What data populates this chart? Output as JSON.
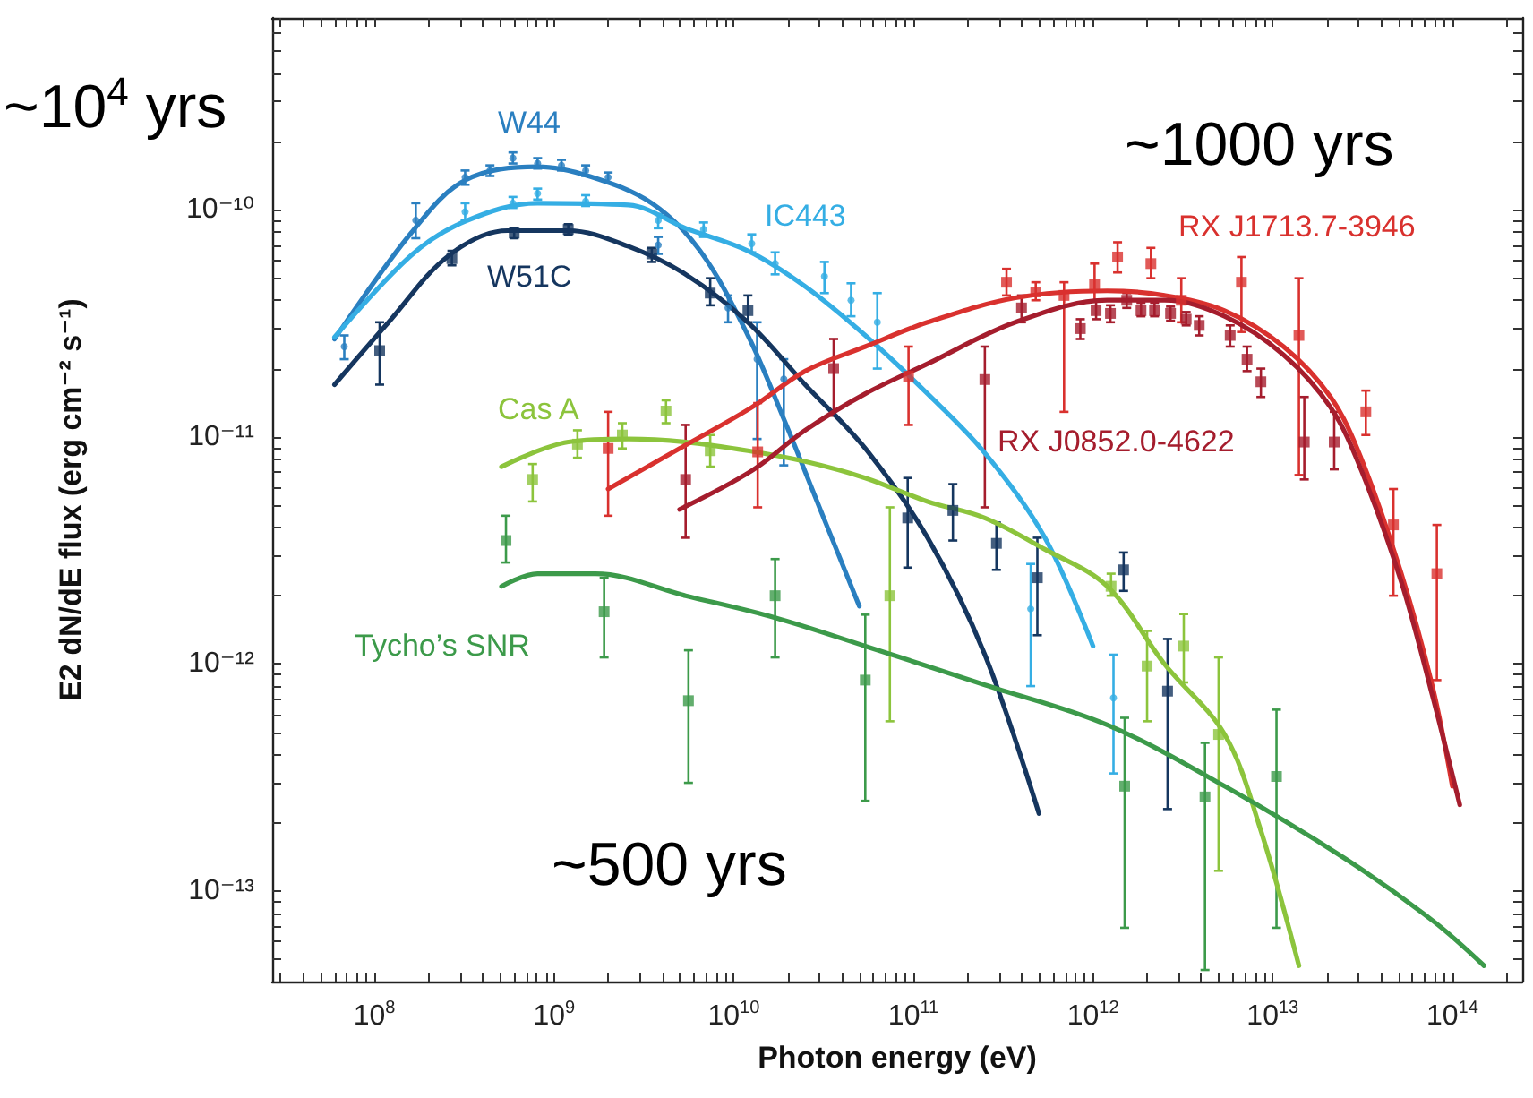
{
  "chart_data": {
    "type": "line",
    "xlabel": "Photon energy (eV)",
    "ylabel": "E2 dN/dE flux (erg cm⁻² s⁻¹)",
    "log": "xy",
    "line_style": "solid",
    "xlim": [
      27000000.0,
      245000000000000.0
    ],
    "ylim": [
      4e-14,
      7e-10
    ],
    "xticks": [
      {
        "value": 30000000.0,
        "label": null
      },
      {
        "value": 40000000.0,
        "label": null
      },
      {
        "value": 50000000.0,
        "label": null
      },
      {
        "value": 60000000.0,
        "label": null
      },
      {
        "value": 70000000.0,
        "label": null
      },
      {
        "value": 80000000.0,
        "label": null
      },
      {
        "value": 90000000.0,
        "label": null
      },
      {
        "value": 100000000.0,
        "label": "10$^{8}$"
      },
      {
        "value": 200000000.0,
        "label": null
      },
      {
        "value": 300000000.0,
        "label": null
      },
      {
        "value": 400000000.0,
        "label": null
      },
      {
        "value": 500000000.0,
        "label": null
      },
      {
        "value": 600000000.0,
        "label": null
      },
      {
        "value": 700000000.0,
        "label": null
      },
      {
        "value": 800000000.0,
        "label": null
      },
      {
        "value": 900000000.0,
        "label": null
      },
      {
        "value": 1000000000.0,
        "label": "10$^{9}$"
      },
      {
        "value": 2000000000.0,
        "label": null
      },
      {
        "value": 3000000000.0,
        "label": null
      },
      {
        "value": 4000000000.0,
        "label": null
      },
      {
        "value": 5000000000.0,
        "label": null
      },
      {
        "value": 6000000000.0,
        "label": null
      },
      {
        "value": 7000000000.0,
        "label": null
      },
      {
        "value": 8000000000.0,
        "label": null
      },
      {
        "value": 9000000000.0,
        "label": null
      },
      {
        "value": 10000000000.0,
        "label": "10$^{10}$"
      },
      {
        "value": 20000000000.0,
        "label": null
      },
      {
        "value": 30000000000.0,
        "label": null
      },
      {
        "value": 40000000000.0,
        "label": null
      },
      {
        "value": 50000000000.0,
        "label": null
      },
      {
        "value": 60000000000.0,
        "label": null
      },
      {
        "value": 70000000000.0,
        "label": null
      },
      {
        "value": 80000000000.0,
        "label": null
      },
      {
        "value": 90000000000.0,
        "label": null
      },
      {
        "value": 100000000000.0,
        "label": "10$^{11}$"
      },
      {
        "value": 200000000000.0,
        "label": null
      },
      {
        "value": 300000000000.0,
        "label": null
      },
      {
        "value": 400000000000.0,
        "label": null
      },
      {
        "value": 500000000000.0,
        "label": null
      },
      {
        "value": 600000000000.0,
        "label": null
      },
      {
        "value": 700000000000.0,
        "label": null
      },
      {
        "value": 800000000000.0,
        "label": null
      },
      {
        "value": 900000000000.0,
        "label": null
      },
      {
        "value": 1000000000000.0,
        "label": "10$^{12}$"
      },
      {
        "value": 2000000000000.0,
        "label": null
      },
      {
        "value": 3000000000000.0,
        "label": null
      },
      {
        "value": 4000000000000.0,
        "label": null
      },
      {
        "value": 5000000000000.0,
        "label": null
      },
      {
        "value": 6000000000000.0,
        "label": null
      },
      {
        "value": 7000000000000.0,
        "label": null
      },
      {
        "value": 8000000000000.0,
        "label": null
      },
      {
        "value": 9000000000000.0,
        "label": null
      },
      {
        "value": 10000000000000.0,
        "label": "10$^{13}$"
      },
      {
        "value": 20000000000000.0,
        "label": null
      },
      {
        "value": 30000000000000.0,
        "label": null
      },
      {
        "value": 40000000000000.0,
        "label": null
      },
      {
        "value": 50000000000000.0,
        "label": null
      },
      {
        "value": 60000000000000.0,
        "label": null
      },
      {
        "value": 70000000000000.0,
        "label": null
      },
      {
        "value": 80000000000000.0,
        "label": null
      },
      {
        "value": 90000000000000.0,
        "label": null
      },
      {
        "value": 100000000000000.0,
        "label": "10$^{14}$"
      },
      {
        "value": 200000000000000.0,
        "label": null
      }
    ],
    "yticks": [
      {
        "value": 5e-14,
        "label": null
      },
      {
        "value": 6e-14,
        "label": null
      },
      {
        "value": 7e-14,
        "label": null
      },
      {
        "value": 8e-14,
        "label": null
      },
      {
        "value": 9e-14,
        "label": null
      },
      {
        "value": 1e-13,
        "label": "10⁻¹³"
      },
      {
        "value": 2e-13,
        "label": null
      },
      {
        "value": 3e-13,
        "label": null
      },
      {
        "value": 4e-13,
        "label": null
      },
      {
        "value": 5e-13,
        "label": null
      },
      {
        "value": 6e-13,
        "label": null
      },
      {
        "value": 7e-13,
        "label": null
      },
      {
        "value": 8e-13,
        "label": null
      },
      {
        "value": 9e-13,
        "label": null
      },
      {
        "value": 1e-12,
        "label": "10⁻¹²"
      },
      {
        "value": 2e-12,
        "label": null
      },
      {
        "value": 3e-12,
        "label": null
      },
      {
        "value": 4e-12,
        "label": null
      },
      {
        "value": 5e-12,
        "label": null
      },
      {
        "value": 6e-12,
        "label": null
      },
      {
        "value": 7e-12,
        "label": null
      },
      {
        "value": 8e-12,
        "label": null
      },
      {
        "value": 9e-12,
        "label": null
      },
      {
        "value": 1e-11,
        "label": "10⁻¹¹"
      },
      {
        "value": 2e-11,
        "label": null
      },
      {
        "value": 3e-11,
        "label": null
      },
      {
        "value": 4e-11,
        "label": null
      },
      {
        "value": 5e-11,
        "label": null
      },
      {
        "value": 6e-11,
        "label": null
      },
      {
        "value": 7e-11,
        "label": null
      },
      {
        "value": 8e-11,
        "label": null
      },
      {
        "value": 9e-11,
        "label": null
      },
      {
        "value": 1e-10,
        "label": "10⁻¹⁰"
      },
      {
        "value": 2e-10,
        "label": null
      },
      {
        "value": 3e-10,
        "label": null
      },
      {
        "value": 4e-10,
        "label": null
      },
      {
        "value": 5e-10,
        "label": null
      },
      {
        "value": 6e-10,
        "label": null
      }
    ],
    "annotations": [
      "~10$^{4}$ yrs",
      "~1000 yrs",
      "~500 yrs"
    ],
    "series": [
      {
        "name": "W44",
        "color": "#2a7fc0",
        "marker": "none",
        "x": [
          60000000.0,
          160000000.0,
          320000000.0,
          810000000.0,
          1600000000.0,
          3500000000.0,
          6500000000.0,
          12000000000.0,
          19000000000.0,
          30000000000.0,
          50000000000.0
        ],
        "values": [
          2.7e-11,
          7.9e-11,
          1.35e-10,
          1.55e-10,
          1.4e-10,
          1.07e-10,
          6.6e-11,
          2.8e-11,
          1.2e-11,
          4.9e-12,
          1.8e-12
        ]
      },
      {
        "name": "IC443",
        "color": "#35aee4",
        "marker": "none",
        "x": [
          60000000.0,
          160000000.0,
          320000000.0,
          810000000.0,
          2600000000.0,
          5400000000.0,
          12000000000.0,
          25000000000.0,
          54000000000.0,
          120000000000.0,
          250000000000.0,
          540000000000.0,
          1000000000000.0
        ],
        "values": [
          2.75e-11,
          6.3e-11,
          8.9e-11,
          1.07e-10,
          1.05e-10,
          8.3e-11,
          6.6e-11,
          4.6e-11,
          2.8e-11,
          1.55e-11,
          8.5e-12,
          3.6e-12,
          1.2e-12
        ]
      },
      {
        "name": "W51C",
        "color": "#15365f",
        "marker": "none",
        "x": [
          60000000.0,
          120000000.0,
          260000000.0,
          550000000.0,
          1200000000.0,
          2600000000.0,
          5400000000.0,
          12000000000.0,
          25000000000.0,
          54000000000.0,
          120000000000.0,
          250000000000.0,
          500000000000.0
        ],
        "values": [
          1.7e-11,
          3.2e-11,
          6.3e-11,
          8.1e-11,
          8.1e-11,
          6.9e-11,
          5.2e-11,
          3.2e-11,
          1.7e-11,
          8.9e-12,
          3.6e-12,
          1.1e-12,
          2.2e-13
        ]
      },
      {
        "name": "Cas A",
        "color": "#8cc43c",
        "marker": "none",
        "x": [
          510000000.0,
          1200000000.0,
          2600000000.0,
          5400000000.0,
          12000000000.0,
          25000000000.0,
          54000000000.0,
          120000000000.0,
          250000000000.0,
          540000000000.0,
          1200000000000.0,
          2500000000000.0,
          5400000000000.0,
          8500000000000.0,
          14000000000000.0
        ],
        "values": [
          7.4e-12,
          9.5e-12,
          9.8e-12,
          9.5e-12,
          8.7e-12,
          7.8e-12,
          6.6e-12,
          5.2e-12,
          4.4e-12,
          3.2e-12,
          2.2e-12,
          1e-12,
          4.9e-13,
          1.9e-13,
          4.7e-14
        ]
      },
      {
        "name": "Tycho’s SNR",
        "color": "#3c9a4a",
        "marker": "none",
        "x": [
          510000000.0,
          810000000.0,
          1700000000.0,
          5400000000.0,
          17000000000.0,
          54000000000.0,
          250000000000.0,
          1200000000000.0,
          5400000000000.0,
          25000000000000.0,
          78000000000000.0,
          150000000000000.0
        ],
        "values": [
          2.2e-12,
          2.5e-12,
          2.5e-12,
          2e-12,
          1.6e-12,
          1.2e-12,
          8.1e-13,
          5.4e-13,
          2.9e-13,
          1.4e-13,
          7.4e-14,
          4.7e-14
        ]
      },
      {
        "name": "RX J1713.7-3946",
        "color": "#d9312e",
        "marker": "none",
        "x": [
          2000000000.0,
          5000000000.0,
          12600000000.0,
          25000000000.0,
          54000000000.0,
          120000000000.0,
          370000000000.0,
          1200000000000.0,
          2500000000000.0,
          5400000000000.0,
          11500000000000.0,
          21000000000000.0,
          31000000000000.0,
          52000000000000.0,
          78000000000000.0,
          100000000000000.0
        ],
        "values": [
          5.9e-12,
          8.9e-12,
          1.35e-11,
          1.95e-11,
          2.5e-11,
          3.2e-11,
          4.1e-11,
          4.4e-11,
          4.2e-11,
          3.6e-11,
          2.5e-11,
          1.5e-11,
          8.1e-12,
          2.5e-12,
          7.8e-13,
          2.9e-13
        ]
      },
      {
        "name": "RX J0852.0-4622",
        "color": "#a51d2d",
        "marker": "none",
        "x": [
          5000000000.0,
          12600000000.0,
          25000000000.0,
          54000000000.0,
          120000000000.0,
          370000000000.0,
          1200000000000.0,
          2500000000000.0,
          5400000000000.0,
          11500000000000.0,
          21000000000000.0,
          31000000000000.0,
          52000000000000.0,
          78000000000000.0,
          110000000000000.0
        ],
        "values": [
          4.8e-12,
          7.1e-12,
          1.07e-11,
          1.55e-11,
          2.1e-11,
          3.2e-11,
          4e-11,
          4e-11,
          3.4e-11,
          2.3e-11,
          1.35e-11,
          7.2e-12,
          2.3e-12,
          7.1e-13,
          2.4e-13
        ]
      },
      {
        "type": "scatter",
        "color": "#2a7fc0",
        "marker": "circle",
        "x": [
          68000000.0,
          170000000.0,
          320000000.0,
          440000000.0,
          590000000.0,
          810000000.0,
          1100000000.0,
          1500000000.0,
          2000000000.0,
          3800000000.0,
          9300000000.0,
          13500000000.0,
          19000000000.0
        ],
        "values": [
          2.5e-11,
          9e-11,
          1.39e-10,
          1.49e-10,
          1.69e-10,
          1.6e-10,
          1.57e-10,
          1.49e-10,
          1.39e-10,
          7e-11,
          3.7e-11,
          2.2e-11,
          1.8e-11
        ],
        "errors": [
          [
            2.2e-11,
            2.8e-11
          ],
          [
            7.5e-11,
            1.07e-10
          ],
          [
            1.29e-10,
            1.49e-10
          ],
          [
            1.41e-10,
            1.57e-10
          ],
          [
            1.6e-10,
            1.79e-10
          ],
          [
            1.52e-10,
            1.69e-10
          ],
          [
            1.49e-10,
            1.66e-10
          ],
          [
            1.41e-10,
            1.57e-10
          ],
          [
            1.31e-10,
            1.46e-10
          ],
          [
            6.4e-11,
            7.6e-11
          ],
          [
            3.2e-11,
            4.2e-11
          ],
          [
            9.8e-12,
            3.2e-11
          ],
          [
            7.5e-12,
            2.2e-11
          ]
        ]
      },
      {
        "type": "scatter",
        "color": "#35aee4",
        "marker": "circle",
        "x": [
          320000000.0,
          590000000.0,
          810000000.0,
          1500000000.0,
          3800000000.0,
          6800000000.0,
          12600000000.0,
          17000000000.0,
          32000000000.0,
          45000000000.0,
          63000000000.0,
          450000000000.0,
          1300000000000.0
        ],
        "values": [
          9.8e-11,
          1.07e-10,
          1.18e-10,
          1.09e-10,
          9e-11,
          8.2e-11,
          7.1e-11,
          5.8e-11,
          5.1e-11,
          4e-11,
          3.2e-11,
          1.75e-12,
          7.1e-13
        ],
        "errors": [
          [
            9e-11,
            1.07e-10
          ],
          [
            1.02e-10,
            1.14e-10
          ],
          [
            1.11e-10,
            1.24e-10
          ],
          [
            1.04e-10,
            1.16e-10
          ],
          [
            8.3e-11,
            9.6e-11
          ],
          [
            7.6e-11,
            8.8e-11
          ],
          [
            6.5e-11,
            7.8e-11
          ],
          [
            5.2e-11,
            6.5e-11
          ],
          [
            4.3e-11,
            5.9e-11
          ],
          [
            3.4e-11,
            4.75e-11
          ],
          [
            2e-11,
            4.3e-11
          ],
          [
            8e-13,
            2.76e-12
          ],
          [
            3.3e-13,
            1.1e-12
          ]
        ]
      },
      {
        "type": "scatter",
        "color": "#15365f",
        "marker": "square",
        "x": [
          107000000.0,
          270000000.0,
          600000000.0,
          1200000000.0,
          3500000000.0,
          7400000000.0,
          12000000000.0,
          93000000000.0,
          166000000000.0,
          290000000000.0,
          490000000000.0,
          1480000000000.0,
          2600000000000.0
        ],
        "values": [
          2.4e-11,
          6.1e-11,
          7.9e-11,
          8.2e-11,
          6.4e-11,
          4.3e-11,
          3.6e-11,
          4.4e-12,
          4.75e-12,
          3.4e-12,
          2.4e-12,
          2.6e-12,
          7.6e-13
        ],
        "errors": [
          [
            1.7e-11,
            3.2e-11
          ],
          [
            5.7e-11,
            6.6e-11
          ],
          [
            7.5e-11,
            8.3e-11
          ],
          [
            7.8e-11,
            8.65e-11
          ],
          [
            5.9e-11,
            6.8e-11
          ],
          [
            3.8e-11,
            5e-11
          ],
          [
            3.2e-11,
            4.2e-11
          ],
          [
            2.66e-12,
            6.6e-12
          ],
          [
            3.5e-12,
            6.2e-12
          ],
          [
            2.6e-12,
            4.2e-12
          ],
          [
            1.34e-12,
            3.6e-12
          ],
          [
            2.1e-12,
            3.1e-12
          ],
          [
            2.3e-13,
            1.29e-12
          ]
        ]
      },
      {
        "type": "scatter",
        "color": "#8cc43c",
        "marker": "square",
        "x": [
          760000000.0,
          1350000000.0,
          2400000000.0,
          4200000000.0,
          7400000000.0,
          13500000000.0,
          74000000000.0,
          1260000000000.0,
          2000000000000.0,
          3200000000000.0,
          5000000000000.0
        ],
        "values": [
          6.5e-12,
          9.3e-12,
          1.02e-11,
          1.3e-11,
          8.7e-12,
          null,
          2e-12,
          2.2e-12,
          9.8e-13,
          1.2e-12,
          4.9e-13
        ],
        "errors": [
          [
            5.2e-12,
            7.6e-12
          ],
          [
            8.1e-12,
            1.07e-11
          ],
          [
            8.9e-12,
            1.15e-11
          ],
          [
            1.15e-11,
            1.45e-11
          ],
          [
            7.4e-12,
            1.02e-11
          ],
          null,
          [
            5.6e-13,
            4.9e-12
          ],
          [
            2e-12,
            2.5e-12
          ],
          [
            5.6e-13,
            1.4e-12
          ],
          [
            8.3e-13,
            1.66e-12
          ],
          [
            1.23e-13,
            1.07e-12
          ]
        ]
      },
      {
        "type": "scatter",
        "color": "#3c9a4a",
        "marker": "square",
        "x": [
          540000000.0,
          1900000000.0,
          5600000000.0,
          17000000000.0,
          54000000000.0,
          1500000000000.0,
          4200000000000.0,
          10500000000000.0
        ],
        "values": [
          3.5e-12,
          1.7e-12,
          6.9e-13,
          2e-12,
          8.5e-13,
          2.9e-13,
          2.6e-13,
          3.2e-13
        ],
        "errors": [
          [
            2.8e-12,
            4.5e-12
          ],
          [
            1.07e-12,
            2.4e-12
          ],
          [
            3e-13,
            1.15e-12
          ],
          [
            1.07e-12,
            2.9e-12
          ],
          [
            2.5e-13,
            1.65e-12
          ],
          [
            6.9e-14,
            5.8e-13
          ],
          [
            4.5e-14,
            4.5e-13
          ],
          [
            6.9e-14,
            6.3e-13
          ]
        ]
      },
      {
        "type": "scatter",
        "color": "#d9312e",
        "marker": "square",
        "x": [
          2000000000.0,
          13600000000.0,
          94000000000.0,
          330000000000.0,
          480000000000.0,
          690000000000.0,
          1020000000000.0,
          1370000000000.0,
          2100000000000.0,
          3100000000000.0,
          6700000000000.0,
          14000000000000.0,
          33000000000000.0,
          47000000000000.0,
          82000000000000.0
        ],
        "values": [
          8.9e-12,
          8.6e-12,
          1.85e-11,
          4.8e-11,
          4.35e-11,
          4.2e-11,
          4.7e-11,
          6.2e-11,
          5.8e-11,
          4e-11,
          4.8e-11,
          2.8e-11,
          1.29e-11,
          4.1e-12,
          2.5e-12
        ],
        "errors": [
          [
            4.5e-12,
            1.29e-11
          ],
          [
            4.9e-12,
            1.41e-11
          ],
          [
            1.13e-11,
            2.5e-11
          ],
          [
            4.2e-11,
            5.5e-11
          ],
          [
            4e-11,
            4.8e-11
          ],
          [
            1.29e-11,
            4.8e-11
          ],
          [
            4e-11,
            5.8e-11
          ],
          [
            5.3e-11,
            7.2e-11
          ],
          [
            5e-11,
            6.8e-11
          ],
          [
            3.2e-11,
            5e-11
          ],
          [
            2.9e-11,
            6.2e-11
          ],
          [
            6.8e-12,
            5e-11
          ],
          [
            1.02e-11,
            1.6e-11
          ],
          [
            2e-12,
            5.9e-12
          ],
          [
            8.5e-13,
            4.1e-12
          ]
        ]
      },
      {
        "type": "scatter",
        "color": "#a51d2d",
        "marker": "square",
        "x": [
          5400000000.0,
          36000000000.0,
          250000000000.0,
          400000000000.0,
          850000000000.0,
          1040000000000.0,
          1250000000000.0,
          1540000000000.0,
          1850000000000.0,
          2200000000000.0,
          2700000000000.0,
          3300000000000.0,
          3900000000000.0,
          5800000000000.0,
          7200000000000.0,
          8600000000000.0,
          15000000000000.0,
          22000000000000.0
        ],
        "values": [
          6.5e-12,
          2e-11,
          1.79e-11,
          3.7e-11,
          3e-11,
          3.6e-11,
          3.5e-11,
          4e-11,
          3.6e-11,
          3.6e-11,
          3.5e-11,
          3.3e-11,
          3.1e-11,
          2.8e-11,
          2.2e-11,
          1.75e-11,
          9.5e-12,
          9.5e-12
        ],
        "errors": [
          [
            3.6e-12,
            1.13e-11
          ],
          [
            1.24e-11,
            2.7e-11
          ],
          [
            4.9e-12,
            2.5e-11
          ],
          [
            3.2e-11,
            4.2e-11
          ],
          [
            2.7e-11,
            3.3e-11
          ],
          [
            3.3e-11,
            4e-11
          ],
          [
            3.2e-11,
            3.8e-11
          ],
          [
            3.7e-11,
            4.3e-11
          ],
          [
            3.4e-11,
            3.9e-11
          ],
          [
            3.4e-11,
            3.9e-11
          ],
          [
            3.25e-11,
            3.75e-11
          ],
          [
            3.1e-11,
            3.55e-11
          ],
          [
            2.8e-11,
            3.4e-11
          ],
          [
            2.5e-11,
            3.1e-11
          ],
          [
            1.95e-11,
            2.5e-11
          ],
          [
            1.5e-11,
            2e-11
          ],
          [
            6.5e-12,
            1.5e-11
          ],
          [
            7.2e-12,
            1.29e-11
          ]
        ]
      }
    ]
  }
}
